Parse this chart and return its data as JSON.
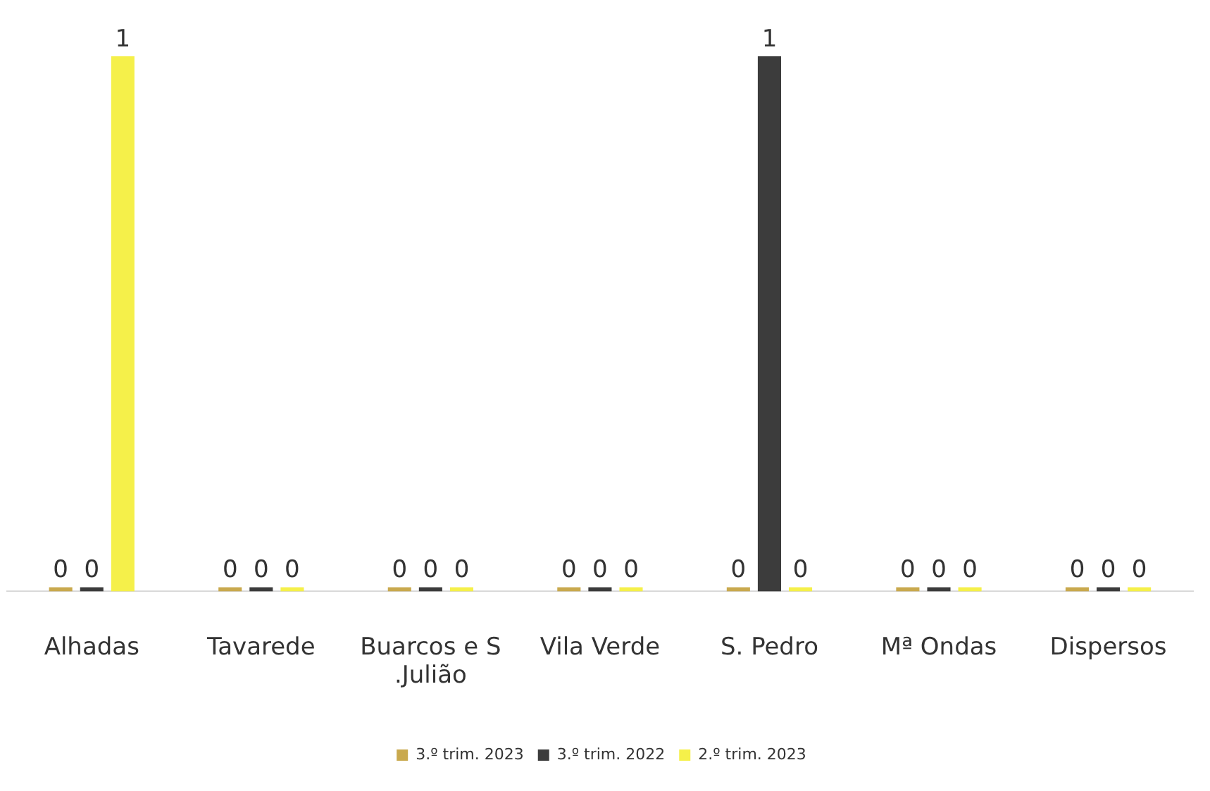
{
  "chart_data": {
    "type": "bar",
    "categories": [
      "Alhadas",
      "Tavarede",
      "Buarcos e S.Julião",
      "Vila Verde",
      "S. Pedro",
      "Mª Ondas",
      "Dispersos"
    ],
    "series": [
      {
        "name": "3.º trim. 2023",
        "color": "#c9a94e",
        "values": [
          0,
          0,
          0,
          0,
          0,
          0,
          0
        ]
      },
      {
        "name": "3.º trim. 2022",
        "color": "#3c3c3c",
        "values": [
          0,
          0,
          0,
          0,
          1,
          0,
          0
        ]
      },
      {
        "name": "2.º trim. 2023",
        "color": "#f5f04a",
        "values": [
          1,
          0,
          0,
          0,
          0,
          0,
          0
        ]
      }
    ],
    "data_labels": true,
    "grid": false,
    "legend": "bottom",
    "tick_labels": "x"
  }
}
